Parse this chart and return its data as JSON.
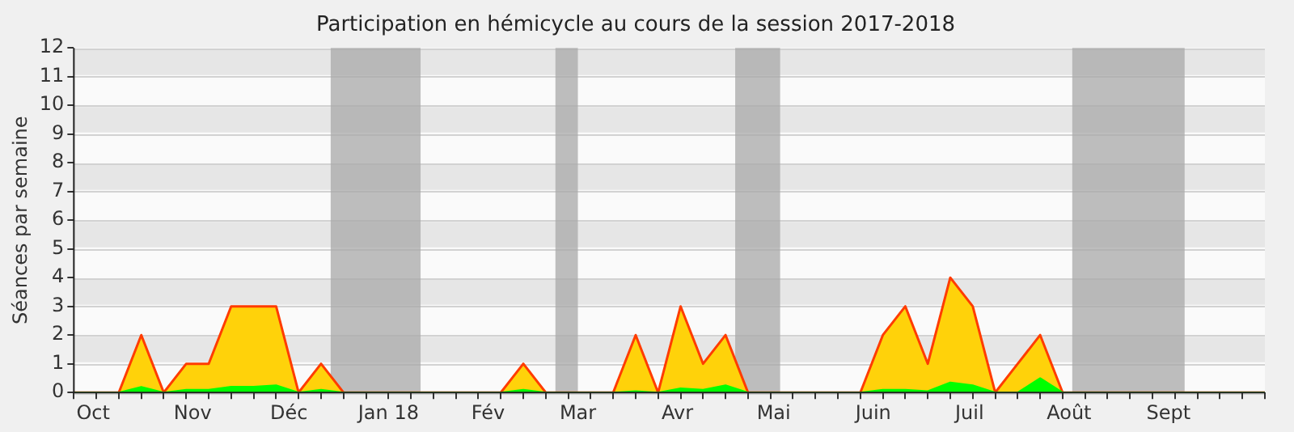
{
  "chart_data": {
    "type": "area",
    "title": "Participation en hémicycle au cours de la session 2017-2018",
    "ylabel": "Séances par semaine",
    "x": [
      "2017-09-25",
      "2017-10-02",
      "2017-10-09",
      "2017-10-16",
      "2017-10-23",
      "2017-10-30",
      "2017-11-06",
      "2017-11-13",
      "2017-11-20",
      "2017-11-27",
      "2017-12-04",
      "2017-12-11",
      "2017-12-18",
      "2017-12-25",
      "2018-01-01",
      "2018-01-08",
      "2018-01-15",
      "2018-01-22",
      "2018-01-29",
      "2018-02-05",
      "2018-02-12",
      "2018-02-19",
      "2018-02-26",
      "2018-03-05",
      "2018-03-12",
      "2018-03-19",
      "2018-03-26",
      "2018-04-02",
      "2018-04-09",
      "2018-04-16",
      "2018-04-23",
      "2018-04-30",
      "2018-05-07",
      "2018-05-14",
      "2018-05-21",
      "2018-05-28",
      "2018-06-04",
      "2018-06-11",
      "2018-06-18",
      "2018-06-25",
      "2018-07-02",
      "2018-07-09",
      "2018-07-16",
      "2018-07-23",
      "2018-07-30",
      "2018-08-06",
      "2018-08-13",
      "2018-08-20",
      "2018-08-27",
      "2018-09-03",
      "2018-09-10",
      "2018-09-17",
      "2018-09-24",
      "2018-10-01"
    ],
    "series": [
      {
        "color": "#ffd20a",
        "values": [
          0,
          0,
          0,
          2,
          0,
          1,
          1,
          3,
          3,
          3,
          0,
          1,
          0,
          0,
          0,
          0,
          0,
          0,
          0,
          0,
          1,
          0,
          0,
          0,
          0,
          2,
          0,
          3,
          1,
          2,
          0,
          0,
          0,
          0,
          0,
          0,
          2,
          3,
          1,
          4,
          3,
          0,
          1,
          2,
          0,
          0,
          0,
          0,
          0,
          0,
          0,
          0,
          0,
          0
        ]
      },
      {
        "color": "#00ff00",
        "values": [
          0,
          0,
          0,
          0.2,
          0,
          0.1,
          0.1,
          0.2,
          0.2,
          0.25,
          0,
          0.1,
          0,
          0,
          0,
          0,
          0,
          0,
          0,
          0,
          0.1,
          0,
          0,
          0,
          0,
          0.05,
          0,
          0.15,
          0.1,
          0.25,
          0,
          0,
          0,
          0,
          0,
          0,
          0.1,
          0.1,
          0.05,
          0.35,
          0.25,
          0,
          0,
          0.5,
          0,
          0,
          0,
          0,
          0,
          0,
          0,
          0,
          0,
          0
        ]
      }
    ],
    "xlim": [
      "2017-09-25",
      "2018-10-01"
    ],
    "xticks": [
      {
        "value": "2017-09-25",
        "label": null
      },
      {
        "value": "2017-10-01",
        "label": "Oct"
      },
      {
        "value": "2017-10-02",
        "label": null
      },
      {
        "value": "2017-10-09",
        "label": null
      },
      {
        "value": "2017-10-16",
        "label": null
      },
      {
        "value": "2017-10-23",
        "label": null
      },
      {
        "value": "2017-10-30",
        "label": null
      },
      {
        "value": "2017-11-01",
        "label": "Nov"
      },
      {
        "value": "2017-11-06",
        "label": null
      },
      {
        "value": "2017-11-13",
        "label": null
      },
      {
        "value": "2017-11-20",
        "label": null
      },
      {
        "value": "2017-11-27",
        "label": null
      },
      {
        "value": "2017-12-01",
        "label": "Déc"
      },
      {
        "value": "2017-12-04",
        "label": null
      },
      {
        "value": "2017-12-11",
        "label": null
      },
      {
        "value": "2017-12-18",
        "label": null
      },
      {
        "value": "2017-12-25",
        "label": null
      },
      {
        "value": "2018-01-01",
        "label": "Jan 18"
      },
      {
        "value": "2018-01-08",
        "label": null
      },
      {
        "value": "2018-01-15",
        "label": null
      },
      {
        "value": "2018-01-22",
        "label": null
      },
      {
        "value": "2018-01-29",
        "label": null
      },
      {
        "value": "2018-02-01",
        "label": "Fév"
      },
      {
        "value": "2018-02-05",
        "label": null
      },
      {
        "value": "2018-02-12",
        "label": null
      },
      {
        "value": "2018-02-19",
        "label": null
      },
      {
        "value": "2018-02-26",
        "label": null
      },
      {
        "value": "2018-03-01",
        "label": "Mar"
      },
      {
        "value": "2018-03-05",
        "label": null
      },
      {
        "value": "2018-03-12",
        "label": null
      },
      {
        "value": "2018-03-19",
        "label": null
      },
      {
        "value": "2018-03-26",
        "label": null
      },
      {
        "value": "2018-04-01",
        "label": "Avr"
      },
      {
        "value": "2018-04-02",
        "label": null
      },
      {
        "value": "2018-04-09",
        "label": null
      },
      {
        "value": "2018-04-16",
        "label": null
      },
      {
        "value": "2018-04-23",
        "label": null
      },
      {
        "value": "2018-04-30",
        "label": null
      },
      {
        "value": "2018-05-01",
        "label": "Mai"
      },
      {
        "value": "2018-05-07",
        "label": null
      },
      {
        "value": "2018-05-14",
        "label": null
      },
      {
        "value": "2018-05-21",
        "label": null
      },
      {
        "value": "2018-05-28",
        "label": null
      },
      {
        "value": "2018-06-01",
        "label": "Juin"
      },
      {
        "value": "2018-06-04",
        "label": null
      },
      {
        "value": "2018-06-11",
        "label": null
      },
      {
        "value": "2018-06-18",
        "label": null
      },
      {
        "value": "2018-06-25",
        "label": null
      },
      {
        "value": "2018-07-01",
        "label": "Juil"
      },
      {
        "value": "2018-07-02",
        "label": null
      },
      {
        "value": "2018-07-09",
        "label": null
      },
      {
        "value": "2018-07-16",
        "label": null
      },
      {
        "value": "2018-07-23",
        "label": null
      },
      {
        "value": "2018-07-30",
        "label": null
      },
      {
        "value": "2018-08-01",
        "label": "Août"
      },
      {
        "value": "2018-08-06",
        "label": null
      },
      {
        "value": "2018-08-13",
        "label": null
      },
      {
        "value": "2018-08-20",
        "label": null
      },
      {
        "value": "2018-08-27",
        "label": null
      },
      {
        "value": "2018-09-01",
        "label": "Sept"
      },
      {
        "value": "2018-09-03",
        "label": null
      },
      {
        "value": "2018-09-10",
        "label": null
      },
      {
        "value": "2018-09-17",
        "label": null
      },
      {
        "value": "2018-09-24",
        "label": null
      },
      {
        "value": "2018-10-01",
        "label": null
      }
    ],
    "ylim": [
      0,
      12
    ],
    "yticks": [
      0,
      1,
      2,
      3,
      4,
      5,
      6,
      7,
      8,
      9,
      10,
      11,
      12
    ],
    "grid": "y",
    "marker": "none",
    "bands": [
      {
        "axis": "x",
        "from": "2017-12-14",
        "to": "2018-01-11",
        "color": "#a8a8a8"
      },
      {
        "axis": "x",
        "from": "2018-02-22",
        "to": "2018-03-01",
        "color": "#a8a8a8"
      },
      {
        "axis": "x",
        "from": "2018-04-19",
        "to": "2018-05-03",
        "color": "#a8a8a8"
      },
      {
        "axis": "x",
        "from": "2018-08-02",
        "to": "2018-09-06",
        "color": "#a8a8a8"
      }
    ]
  }
}
